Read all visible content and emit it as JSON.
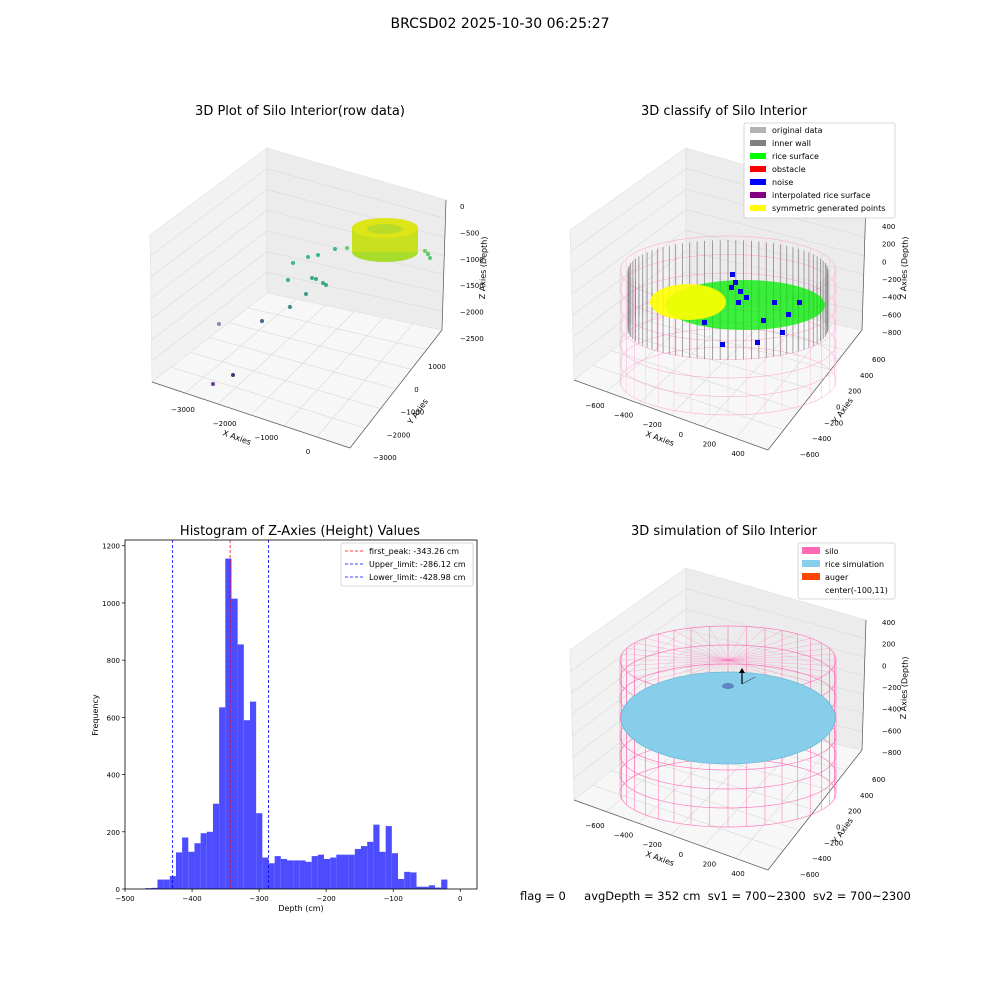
{
  "suptitle": "BRCSD02 2025-10-30 06:25:27",
  "panels": {
    "raw": {
      "title": "3D Plot of Silo Interior(row data)",
      "xlabel": "X Axies",
      "ylabel": "Y Axies",
      "zlabel": "Z Axies (Depth)",
      "xticks": [
        "−3000",
        "−2000",
        "−1000",
        "0"
      ],
      "yticks": [
        "1000",
        "0",
        "−1000",
        "−2000",
        "−3000"
      ],
      "zticks": [
        "0",
        "−500",
        "−1000",
        "−1500",
        "−2000",
        "−2500"
      ]
    },
    "classify": {
      "title": "3D classify of Silo Interior",
      "xlabel": "X Axies",
      "ylabel": "Y Axies",
      "zlabel": "Z Axies (Depth)",
      "xticks": [
        "−600",
        "−400",
        "−200",
        "0",
        "200",
        "400"
      ],
      "yticks": [
        "600",
        "400",
        "200",
        "0",
        "−200",
        "−400",
        "−600"
      ],
      "zticks": [
        "400",
        "200",
        "0",
        "−200",
        "−400",
        "−600",
        "−800"
      ],
      "legend": [
        {
          "label": "original data",
          "color": "#b3b3b3"
        },
        {
          "label": "inner wall",
          "color": "#808080"
        },
        {
          "label": "rice surface",
          "color": "#00ff00"
        },
        {
          "label": "obstacle",
          "color": "#ff0000"
        },
        {
          "label": "noise",
          "color": "#0000ff"
        },
        {
          "label": "interpolated rice surface",
          "color": "#800080"
        },
        {
          "label": "symmetric generated points",
          "color": "#ffff00"
        }
      ]
    },
    "simulation": {
      "title": "3D simulation of Silo Interior",
      "xlabel": "X Axies",
      "ylabel": "Y Axies",
      "zlabel": "Z Axies (Depth)",
      "xticks": [
        "−600",
        "−400",
        "−200",
        "0",
        "200",
        "400"
      ],
      "yticks": [
        "600",
        "400",
        "200",
        "0",
        "−200",
        "−400",
        "−600"
      ],
      "zticks": [
        "400",
        "200",
        "0",
        "−200",
        "−400",
        "−600",
        "−800"
      ],
      "legend": [
        {
          "label": "silo",
          "color": "#ff69b4"
        },
        {
          "label": "rice simulation",
          "color": "#87ceeb"
        },
        {
          "label": "auger",
          "color": "#ff4500"
        },
        {
          "label": "center(-100,11)",
          "color": ""
        }
      ]
    }
  },
  "footer": {
    "flag": "flag = 0",
    "avg": "avgDepth = 352 cm",
    "sv1": "sv1 = 700~2300",
    "sv2": "sv2 = 700~2300"
  },
  "colors": {
    "bar": "#4d4dff",
    "wall": "#ff69b4",
    "rice": "#87ceeb"
  },
  "chart_data": {
    "type": "bar",
    "title": "Histogram of Z-Axies (Height) Values",
    "xlabel": "Depth (cm)",
    "ylabel": "Frequency",
    "xlim": [
      -500,
      25
    ],
    "ylim": [
      0,
      1220
    ],
    "xticks": [
      -500,
      -400,
      -300,
      -200,
      -100,
      0
    ],
    "yticks": [
      0,
      200,
      400,
      600,
      800,
      1000,
      1200
    ],
    "bin_start": -470,
    "bin_width": 9.2,
    "values": [
      3,
      4,
      33,
      33,
      45,
      128,
      180,
      130,
      160,
      195,
      200,
      298,
      635,
      1155,
      1015,
      855,
      590,
      655,
      265,
      110,
      90,
      115,
      105,
      100,
      100,
      100,
      95,
      115,
      120,
      105,
      110,
      120,
      120,
      120,
      140,
      150,
      165,
      225,
      130,
      220,
      125,
      35,
      60,
      58,
      8,
      8,
      13,
      5,
      33
    ],
    "vlines": [
      {
        "label": "first_peak: -343.26 cm",
        "x": -343.26,
        "color": "#ff0000"
      },
      {
        "label": "Upper_limit: -286.12 cm",
        "x": -286.12,
        "color": "#0000ff"
      },
      {
        "label": "Lower_limit: -428.98 cm",
        "x": -428.98,
        "color": "#0000ff"
      }
    ],
    "legend_position": "top-right"
  }
}
